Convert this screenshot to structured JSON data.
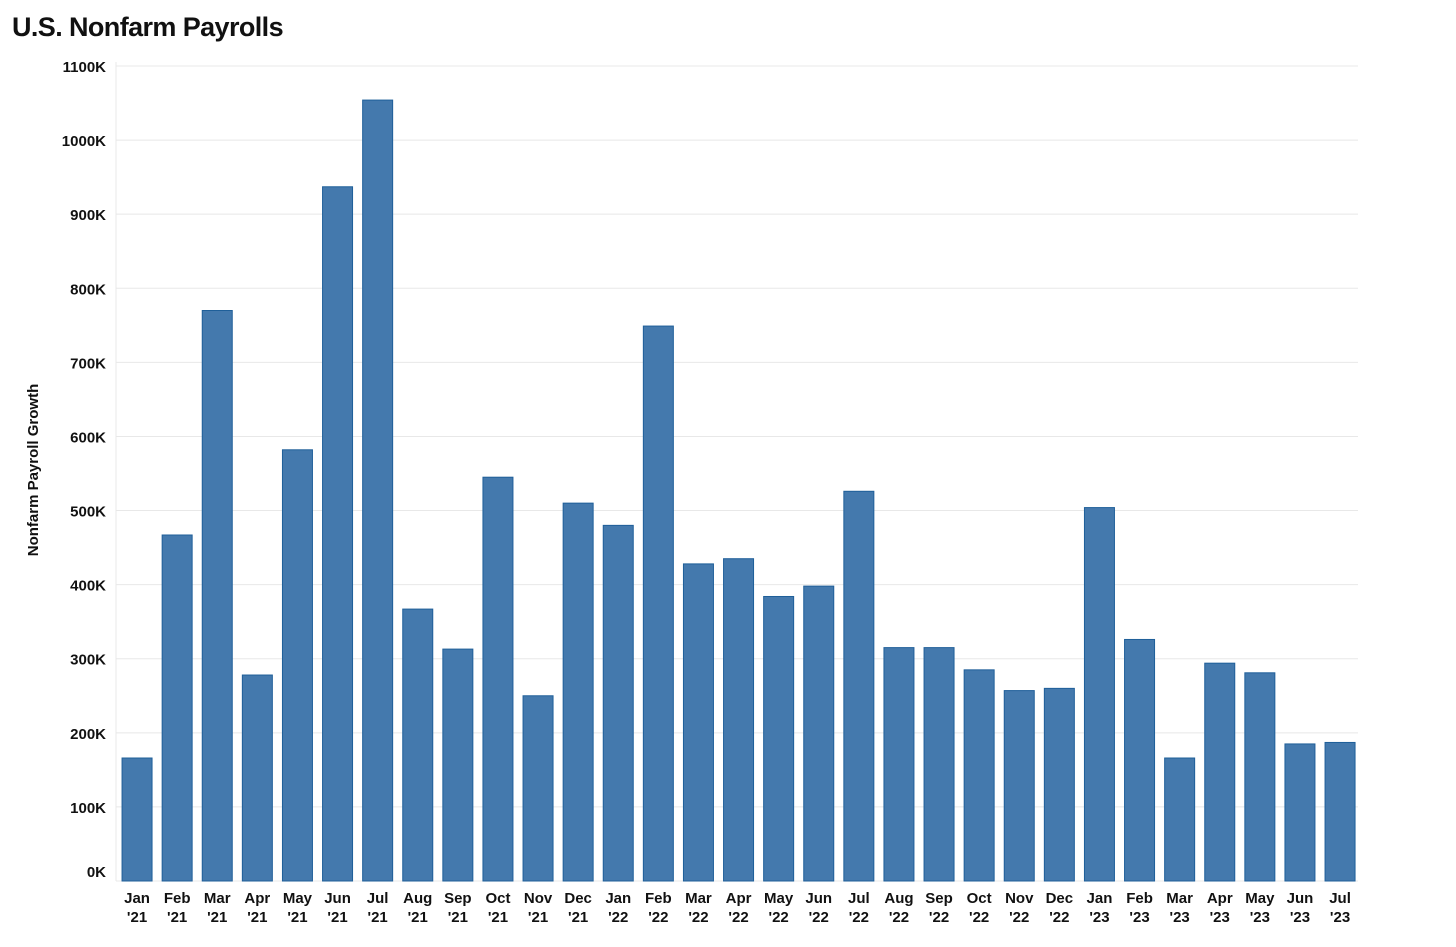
{
  "title": "U.S. Nonfarm Payrolls",
  "colors": {
    "bar_fill": "#4479ad",
    "bar_stroke": "#1f5f99",
    "grid": "#e8e8e8",
    "text": "#111111"
  },
  "chart_data": {
    "type": "bar",
    "title": "U.S. Nonfarm Payrolls",
    "xlabel": "",
    "ylabel": "Nonfarm Payroll Growth",
    "ylim": [
      0,
      1100
    ],
    "y_unit": "K",
    "yticks": [
      "0K",
      "100K",
      "200K",
      "300K",
      "400K",
      "500K",
      "600K",
      "700K",
      "800K",
      "900K",
      "1000K",
      "1100K"
    ],
    "grid": true,
    "legend": "none",
    "categories": [
      [
        "Jan",
        "'21"
      ],
      [
        "Feb",
        "'21"
      ],
      [
        "Mar",
        "'21"
      ],
      [
        "Apr",
        "'21"
      ],
      [
        "May",
        "'21"
      ],
      [
        "Jun",
        "'21"
      ],
      [
        "Jul",
        "'21"
      ],
      [
        "Aug",
        "'21"
      ],
      [
        "Sep",
        "'21"
      ],
      [
        "Oct",
        "'21"
      ],
      [
        "Nov",
        "'21"
      ],
      [
        "Dec",
        "'21"
      ],
      [
        "Jan",
        "'22"
      ],
      [
        "Feb",
        "'22"
      ],
      [
        "Mar",
        "'22"
      ],
      [
        "Apr",
        "'22"
      ],
      [
        "May",
        "'22"
      ],
      [
        "Jun",
        "'22"
      ],
      [
        "Jul",
        "'22"
      ],
      [
        "Aug",
        "'22"
      ],
      [
        "Sep",
        "'22"
      ],
      [
        "Oct",
        "'22"
      ],
      [
        "Nov",
        "'22"
      ],
      [
        "Dec",
        "'22"
      ],
      [
        "Jan",
        "'23"
      ],
      [
        "Feb",
        "'23"
      ],
      [
        "Mar",
        "'23"
      ],
      [
        "Apr",
        "'23"
      ],
      [
        "May",
        "'23"
      ],
      [
        "Jun",
        "'23"
      ],
      [
        "Jul",
        "'23"
      ]
    ],
    "values": [
      166,
      467,
      770,
      278,
      582,
      937,
      1054,
      367,
      313,
      545,
      250,
      510,
      480,
      749,
      428,
      435,
      384,
      398,
      526,
      315,
      315,
      285,
      257,
      260,
      504,
      326,
      166,
      294,
      281,
      185,
      187
    ]
  }
}
